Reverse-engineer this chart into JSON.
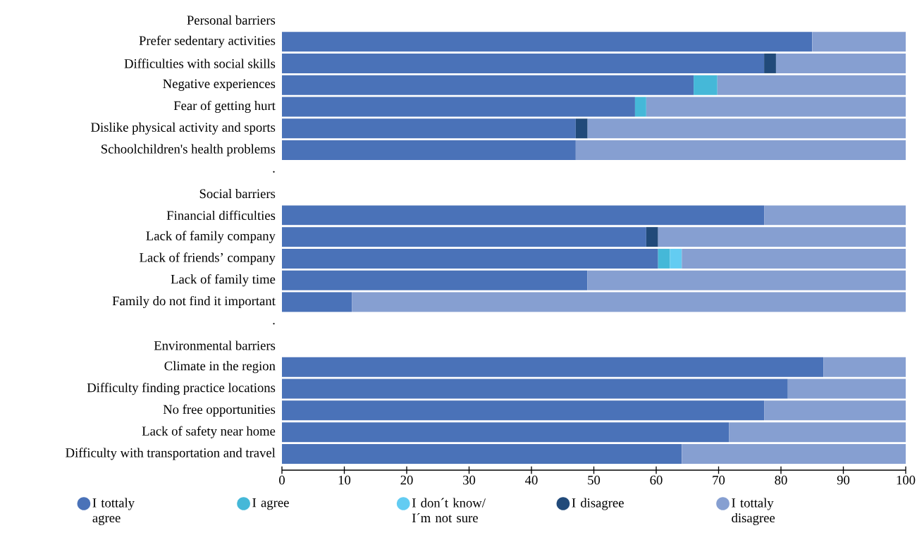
{
  "chart_data": {
    "type": "bar",
    "orientation": "horizontal",
    "stacked": true,
    "categories": [
      "Personal barriers",
      "Prefer sedentary activities",
      "Difficulties with social skills",
      "Negative experiences",
      "Fear of getting hurt",
      "Dislike physical activity and sports",
      "Schoolchildren's health problems",
      ".",
      "Social barriers",
      "Financial difficulties",
      "Lack of family company",
      "Lack of friends’ company",
      "Lack of family time",
      "Family do not find it important",
      ".",
      "Environmental barriers",
      "Climate in the region",
      "Difficulty finding practice locations",
      "No free opportunities",
      "Lack of safety near home",
      "Difficulty with transportation and travel"
    ],
    "series": [
      {
        "name": "I tottaly agree",
        "color": "#4a72b8",
        "values": [
          null,
          85,
          77.3,
          66.0,
          56.6,
          47.1,
          47.1,
          null,
          null,
          77.3,
          58.4,
          60.3,
          49.0,
          11.2,
          null,
          null,
          86.8,
          81.1,
          77.3,
          71.7,
          64.1
        ]
      },
      {
        "name": "I agree",
        "color": "#45b8d8",
        "values": [
          null,
          null,
          null,
          3.8,
          1.8,
          null,
          null,
          null,
          null,
          null,
          null,
          1.9,
          null,
          null,
          null,
          null,
          null,
          null,
          null,
          null,
          null
        ]
      },
      {
        "name": "I don´t know/ I´m not sure",
        "color": "#63ccf2",
        "values": [
          null,
          null,
          null,
          null,
          null,
          null,
          null,
          null,
          null,
          null,
          null,
          1.9,
          null,
          null,
          null,
          null,
          null,
          null,
          null,
          null,
          null
        ]
      },
      {
        "name": "I disagree",
        "color": "#214a7a",
        "values": [
          null,
          null,
          1.9,
          null,
          null,
          1.9,
          null,
          null,
          null,
          null,
          1.9,
          null,
          null,
          null,
          null,
          null,
          null,
          null,
          null,
          null,
          null
        ]
      },
      {
        "name": "I tottaly disagree",
        "color": "#869fd1",
        "values": [
          null,
          15,
          20.8,
          30.2,
          41.6,
          51.0,
          52.9,
          null,
          null,
          22.7,
          39.7,
          35.9,
          51.0,
          88.8,
          null,
          null,
          13.2,
          18.9,
          22.7,
          28.3,
          35.9
        ]
      }
    ],
    "xlim": [
      0,
      100
    ],
    "xticks": [
      0,
      10,
      20,
      30,
      40,
      50,
      60,
      70,
      80,
      90,
      100
    ],
    "legend": "bottom",
    "marker": "circle"
  }
}
